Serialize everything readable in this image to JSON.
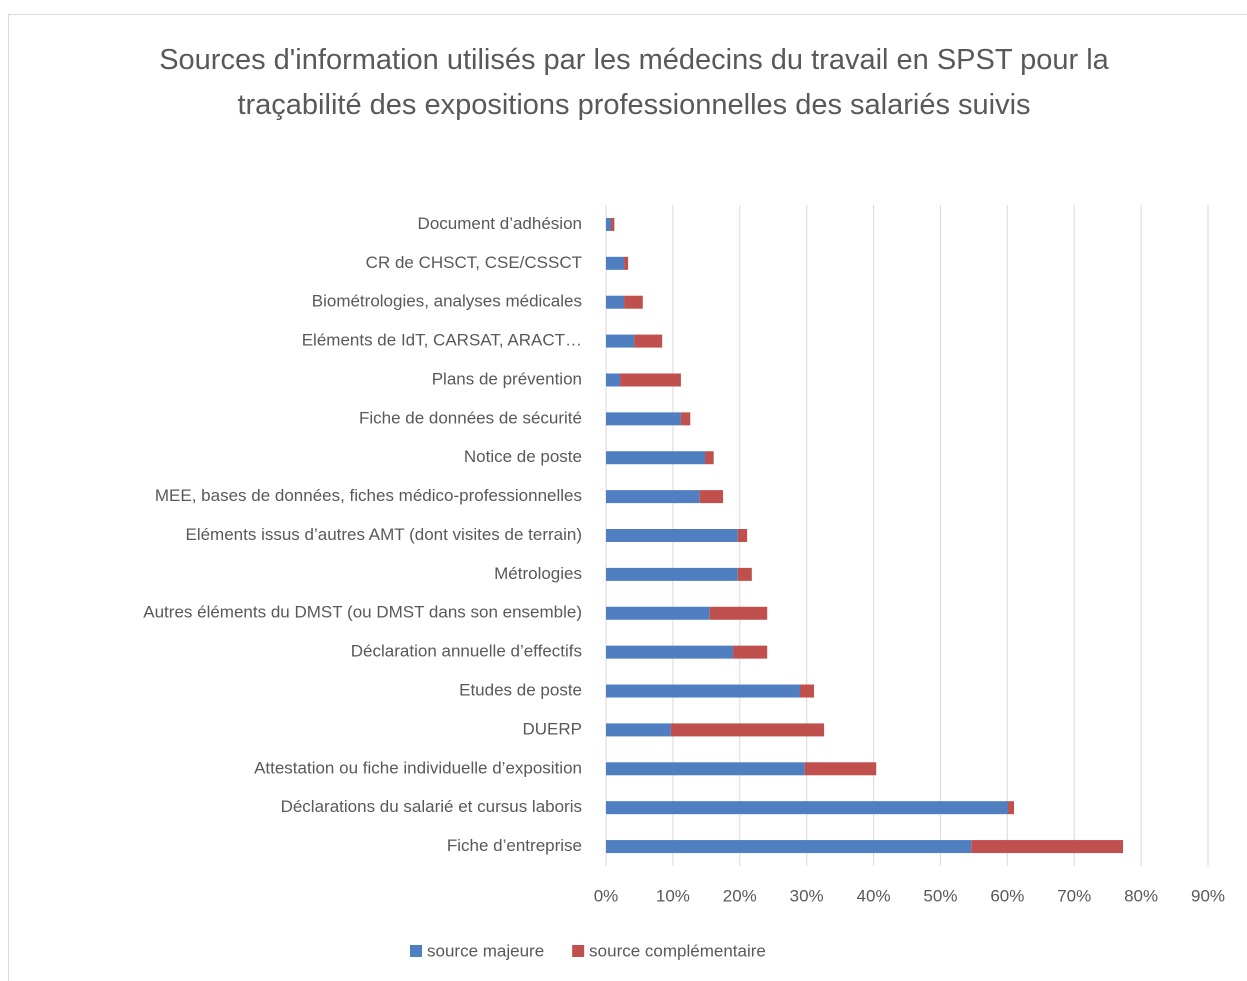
{
  "chart_data": {
    "type": "stacked-bar-horizontal",
    "title": "Sources d'information utilisés par les médecins du travail en SPST pour la traçabilité des expositions professionnelles des salariés suivis",
    "categories": [
      "Document d’adhésion",
      "CR de CHSCT, CSE/CSSCT",
      "Biométrologies, analyses médicales",
      "Eléments de IdT, CARSAT, ARACT…",
      "Plans de prévention",
      "Fiche de données de sécurité",
      "Notice de poste",
      "MEE, bases de données, fiches médico-professionnelles",
      "Eléments issus d’autres AMT (dont visites de terrain)",
      "Métrologies",
      "Autres éléments du DMST (ou DMST dans son ensemble)",
      "Déclaration annuelle d’effectifs",
      "Etudes de poste",
      "DUERP",
      "Attestation ou fiche individuelle d’exposition",
      "Déclarations du salarié et cursus laboris",
      "Fiche d’entreprise"
    ],
    "series": [
      {
        "name": "source majeure",
        "color": "#4f7fc0",
        "values": [
          0.75,
          2.7,
          2.7,
          4.2,
          2.1,
          11.2,
          14.8,
          14.0,
          19.7,
          19.7,
          15.5,
          19.0,
          29.0,
          9.7,
          29.7,
          60.1,
          54.6
        ]
      },
      {
        "name": "source complémentaire",
        "color": "#c0504d",
        "values": [
          0.5,
          0.6,
          2.8,
          4.2,
          9.1,
          1.4,
          1.3,
          3.5,
          1.4,
          2.1,
          8.6,
          5.1,
          2.1,
          22.9,
          10.7,
          0.9,
          22.7
        ]
      }
    ],
    "xlim": [
      0,
      90
    ],
    "xticks": [
      {
        "value": 0,
        "label": "0%"
      },
      {
        "value": 10,
        "label": "10%"
      },
      {
        "value": 20,
        "label": "20%"
      },
      {
        "value": 30,
        "label": "30%"
      },
      {
        "value": 40,
        "label": "40%"
      },
      {
        "value": 50,
        "label": "50%"
      },
      {
        "value": 60,
        "label": "60%"
      },
      {
        "value": 70,
        "label": "70%"
      },
      {
        "value": 80,
        "label": "80%"
      },
      {
        "value": 90,
        "label": "90%"
      }
    ],
    "grid": true,
    "legend": "bottom"
  }
}
